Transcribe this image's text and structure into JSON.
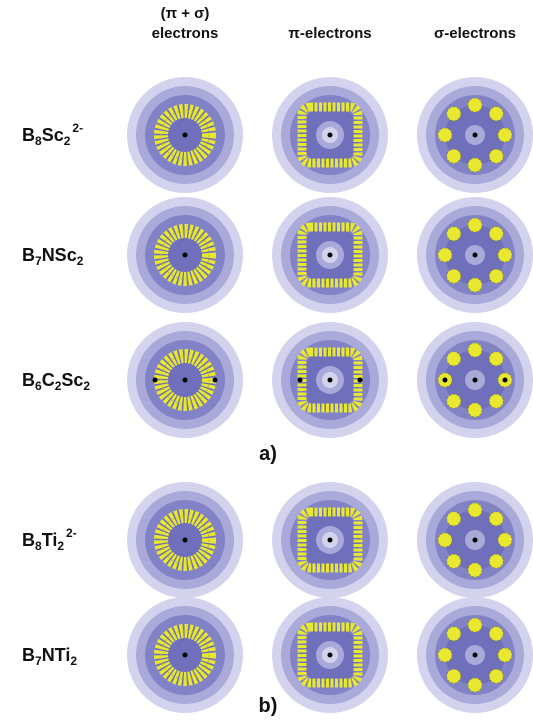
{
  "column_headers": [
    [
      "(π + σ)",
      "electrons"
    ],
    [
      "π-electrons"
    ],
    [
      "σ-electrons"
    ]
  ],
  "sections": [
    {
      "label": "a)",
      "rows": [
        {
          "formula": [
            {
              "text": "B",
              "style": "base"
            },
            {
              "text": "8",
              "style": "sub"
            },
            {
              "text": "Sc",
              "style": "base"
            },
            {
              "text": "2",
              "style": "sub"
            },
            {
              "text": "2-",
              "style": "sup"
            }
          ]
        },
        {
          "formula": [
            {
              "text": "B",
              "style": "base"
            },
            {
              "text": "7",
              "style": "sub"
            },
            {
              "text": "NSc",
              "style": "base"
            },
            {
              "text": "2",
              "style": "sub"
            }
          ]
        },
        {
          "formula": [
            {
              "text": "B",
              "style": "base"
            },
            {
              "text": "6",
              "style": "sub"
            },
            {
              "text": "C",
              "style": "base"
            },
            {
              "text": "2",
              "style": "sub"
            },
            {
              "text": "Sc",
              "style": "base"
            },
            {
              "text": "2",
              "style": "sub"
            }
          ]
        }
      ]
    },
    {
      "label": "b)",
      "rows": [
        {
          "formula": [
            {
              "text": "B",
              "style": "base"
            },
            {
              "text": "8",
              "style": "sub"
            },
            {
              "text": "Ti",
              "style": "base"
            },
            {
              "text": "2",
              "style": "sub"
            },
            {
              "text": "2-",
              "style": "sup"
            }
          ]
        },
        {
          "formula": [
            {
              "text": "B",
              "style": "base"
            },
            {
              "text": "7",
              "style": "sub"
            },
            {
              "text": "NTi",
              "style": "base"
            },
            {
              "text": "2",
              "style": "sub"
            }
          ]
        }
      ]
    }
  ]
}
